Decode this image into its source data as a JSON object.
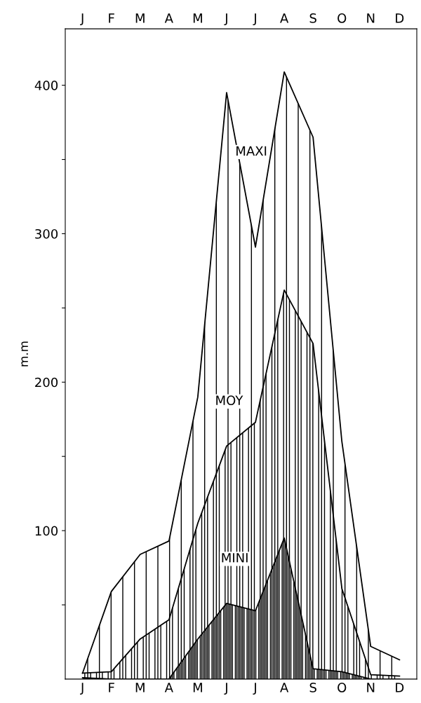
{
  "chart_data": {
    "type": "area",
    "ylabel": "m.m",
    "categories": [
      "J",
      "F",
      "M",
      "A",
      "M",
      "J",
      "J",
      "A",
      "S",
      "O",
      "N",
      "D"
    ],
    "series": [
      {
        "name": "MAXI",
        "color": "#000000",
        "values": [
          4,
          59,
          84,
          93,
          190,
          395,
          291,
          409,
          365,
          160,
          22,
          13
        ]
      },
      {
        "name": "MOY",
        "color": "#000000",
        "values": [
          4,
          5,
          27,
          40,
          105,
          157,
          173,
          262,
          226,
          61,
          3,
          2
        ]
      },
      {
        "name": "MINI",
        "color": "#000000",
        "values": [
          1,
          0,
          0,
          0,
          27,
          51,
          46,
          95,
          7,
          5,
          0,
          0
        ]
      }
    ],
    "ylim": [
      0,
      438
    ],
    "yticks": [
      {
        "value": 50,
        "label": null
      },
      100,
      {
        "value": 150,
        "label": null
      },
      200,
      {
        "value": 250,
        "label": null
      },
      300,
      {
        "value": 350,
        "label": null
      },
      400
    ],
    "grid": false,
    "legend": false
  }
}
